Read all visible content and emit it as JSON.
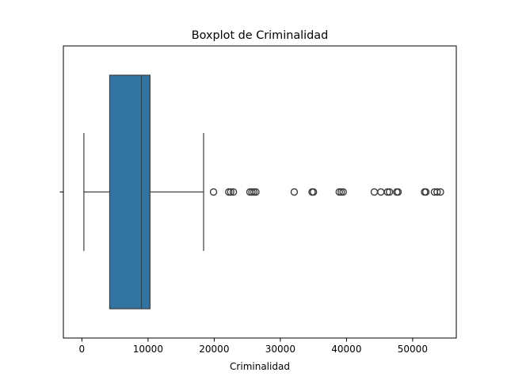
{
  "chart_data": {
    "type": "boxplot",
    "orientation": "horizontal",
    "title": "Boxplot de Criminalidad",
    "xlabel": "Criminalidad",
    "ylabel": "",
    "xlim": [
      -2800,
      56600
    ],
    "xticks": [
      0,
      10000,
      20000,
      30000,
      40000,
      50000
    ],
    "xtick_labels": [
      "0",
      "10000",
      "20000",
      "30000",
      "40000",
      "50000"
    ],
    "grid": false,
    "box": {
      "whisker_low": 300,
      "q1": 4200,
      "median": 9000,
      "q3": 10300,
      "whisker_high": 18400,
      "color": "#3274a1",
      "line_color": "#3f3f3f"
    },
    "outliers": [
      19900,
      22200,
      22500,
      22900,
      25400,
      25700,
      26000,
      26300,
      32100,
      34800,
      35000,
      38900,
      39200,
      39500,
      44200,
      45200,
      46200,
      46500,
      47600,
      47800,
      51800,
      52000,
      53300,
      53700,
      54200
    ]
  }
}
